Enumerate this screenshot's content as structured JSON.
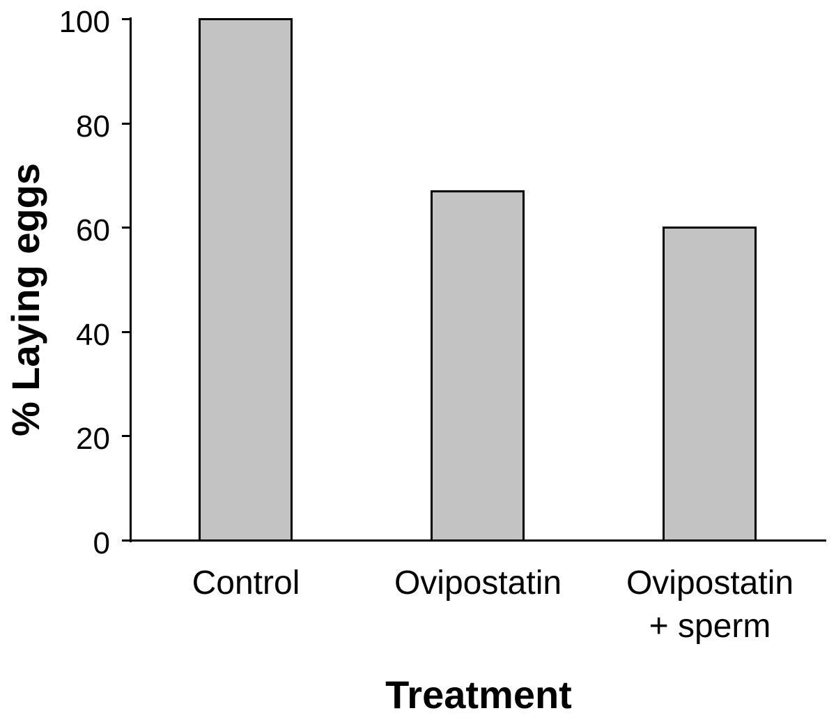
{
  "chart_data": {
    "type": "bar",
    "title": "",
    "xlabel": "Treatment",
    "ylabel": "% Laying eggs",
    "categories": [
      "Control",
      "Ovipostatin",
      "Ovipostatin\n+ sperm"
    ],
    "values": [
      100,
      67,
      60
    ],
    "yticks": [
      0,
      20,
      40,
      60,
      80,
      100
    ],
    "ylim": [
      0,
      100
    ],
    "grid": false,
    "legend": "none",
    "colors": {
      "bar_fill": "#c3c3c3",
      "bar_border": "#000000",
      "axis": "#000000",
      "text": "#000000",
      "background": "#ffffff"
    }
  }
}
